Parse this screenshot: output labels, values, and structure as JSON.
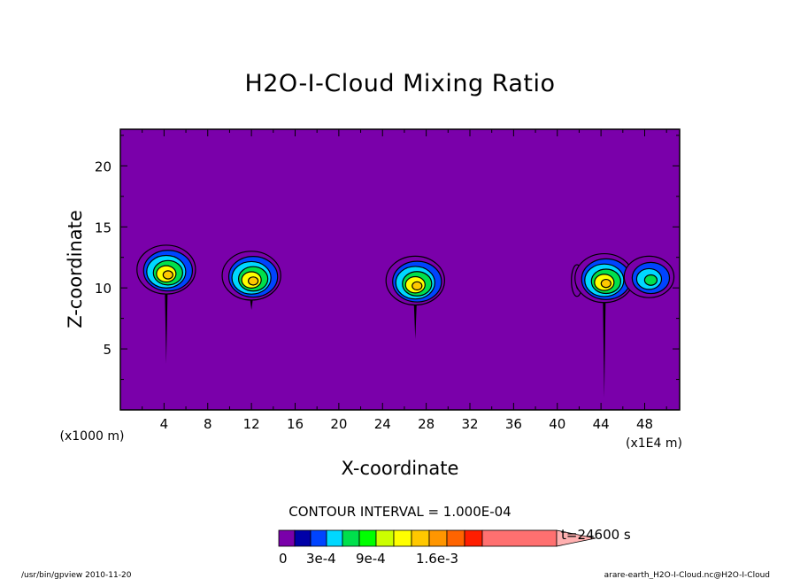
{
  "chart_data": {
    "type": "heatmap",
    "title": "H2O-I-Cloud Mixing Ratio",
    "xlabel": "X-coordinate",
    "ylabel": "Z-coordinate",
    "x_unit": "(x1000 m)",
    "x_scale_note": "(x1E4 m)",
    "x_ticks": [
      4,
      8,
      12,
      16,
      20,
      24,
      28,
      32,
      36,
      40,
      44,
      48
    ],
    "y_ticks": [
      5,
      10,
      15,
      20
    ],
    "xlim": [
      0,
      51.2
    ],
    "ylim": [
      0,
      23
    ],
    "contour_interval_label": "CONTOUR INTERVAL = 1.000E-04",
    "time_label": "t=24600 s",
    "colorbar": {
      "colors": [
        "#7a00aa",
        "#0000a8",
        "#0044ff",
        "#00d8ff",
        "#00e04c",
        "#00ff00",
        "#ccff00",
        "#ffff00",
        "#ffc800",
        "#ff9600",
        "#ff6400",
        "#ff1e00",
        "#ff7070",
        "#ffb0b0"
      ],
      "labels": [
        "0",
        "3e-4",
        "9e-4",
        "1.6e-3"
      ]
    },
    "cloud_regions": [
      {
        "x": 4.2,
        "z_top": 13.5,
        "z_bottom": 3.8,
        "peak": 0.0011
      },
      {
        "x": 12.0,
        "z_top": 13.0,
        "z_bottom": 8.2,
        "peak": 0.0011
      },
      {
        "x": 27.0,
        "z_top": 12.6,
        "z_bottom": 5.8,
        "peak": 0.001
      },
      {
        "x": 41.8,
        "z_top": 11.9,
        "z_bottom": 9.3,
        "peak": 0.0003
      },
      {
        "x": 44.3,
        "z_top": 12.8,
        "z_bottom": 1.0,
        "peak": 0.0011
      },
      {
        "x": 48.4,
        "z_top": 12.6,
        "z_bottom": 9.2,
        "peak": 0.0006
      }
    ],
    "background_color": "#7a00aa"
  },
  "footer": {
    "left": "/usr/bin/gpview  2010-11-20",
    "right": "arare-earth_H2O-I-Cloud.nc@H2O-I-Cloud"
  }
}
